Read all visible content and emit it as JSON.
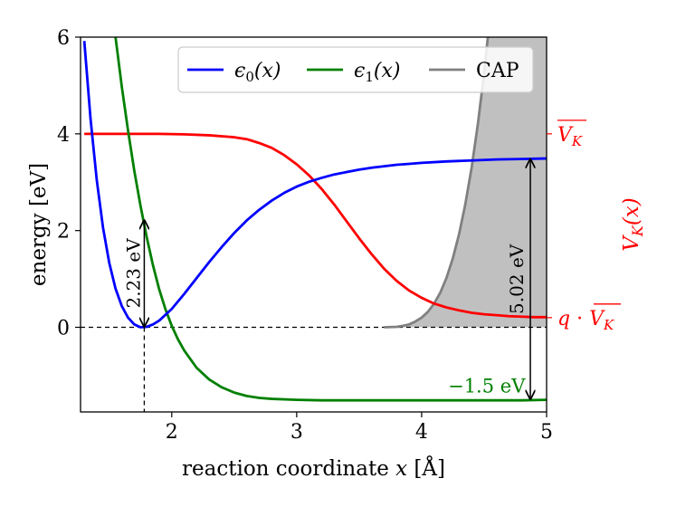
{
  "chart_data": {
    "type": "line",
    "xlabel": "reaction coordinate x [Å]",
    "ylabel": "energy [eV]",
    "ylabel_right": "V_K(x)",
    "xlim": [
      1.27,
      5.0
    ],
    "ylim": [
      -1.75,
      6.0
    ],
    "xticks": [
      "2",
      "3",
      "4",
      "5"
    ],
    "yticks": [
      "0",
      "2",
      "4",
      "6"
    ],
    "right_ticks": [
      {
        "y": 4.0,
        "label": "V̄_K"
      },
      {
        "y": 0.2,
        "label": "q · V̄_K"
      }
    ],
    "legend": {
      "placement": "top-right",
      "entries": [
        "ϵ0(x)",
        "ϵ1(x)",
        "CAP"
      ]
    },
    "series": [
      {
        "name": "ϵ0(x)",
        "color": "#0000ff",
        "x": [
          1.3,
          1.35,
          1.4,
          1.45,
          1.5,
          1.55,
          1.6,
          1.65,
          1.7,
          1.75,
          1.8,
          1.85,
          1.9,
          1.95,
          2.0,
          2.1,
          2.2,
          2.3,
          2.4,
          2.5,
          2.6,
          2.7,
          2.8,
          2.9,
          3.0,
          3.1,
          3.2,
          3.3,
          3.4,
          3.5,
          3.6,
          3.7,
          3.8,
          3.9,
          4.0,
          4.2,
          4.4,
          4.6,
          4.8,
          5.0
        ],
        "y": [
          5.92,
          4.31,
          3.04,
          2.06,
          1.33,
          0.8,
          0.44,
          0.2,
          0.06,
          0.0,
          0.01,
          0.06,
          0.14,
          0.26,
          0.38,
          0.69,
          1.02,
          1.35,
          1.66,
          1.95,
          2.21,
          2.43,
          2.62,
          2.78,
          2.91,
          3.01,
          3.09,
          3.16,
          3.21,
          3.26,
          3.3,
          3.33,
          3.36,
          3.38,
          3.4,
          3.43,
          3.45,
          3.47,
          3.48,
          3.49
        ]
      },
      {
        "name": "ϵ1(x)",
        "color": "#008000",
        "x": [
          1.3,
          1.35,
          1.4,
          1.45,
          1.5,
          1.55,
          1.6,
          1.65,
          1.7,
          1.75,
          1.8,
          1.85,
          1.9,
          1.95,
          2.0,
          2.05,
          2.1,
          2.2,
          2.3,
          2.4,
          2.5,
          2.6,
          2.7,
          2.8,
          3.0,
          3.2,
          3.4,
          3.6,
          3.8,
          4.0,
          4.2,
          4.4,
          4.6,
          4.8,
          5.0
        ],
        "y": [
          10.9,
          9.9,
          9.0,
          8.0,
          7.0,
          6.0,
          4.98,
          4.07,
          3.24,
          2.51,
          1.86,
          1.28,
          0.78,
          0.37,
          0.03,
          -0.25,
          -0.48,
          -0.84,
          -1.08,
          -1.24,
          -1.35,
          -1.42,
          -1.46,
          -1.48,
          -1.5,
          -1.51,
          -1.51,
          -1.51,
          -1.51,
          -1.51,
          -1.51,
          -1.51,
          -1.51,
          -1.51,
          -1.5
        ]
      },
      {
        "name": "V_K(x)",
        "color": "#ff0000",
        "x": [
          1.3,
          1.5,
          1.7,
          1.9,
          2.1,
          2.3,
          2.5,
          2.6,
          2.7,
          2.8,
          2.9,
          3.0,
          3.1,
          3.2,
          3.3,
          3.4,
          3.5,
          3.6,
          3.7,
          3.8,
          3.9,
          4.0,
          4.1,
          4.2,
          4.3,
          4.4,
          4.5,
          4.6,
          4.7,
          4.8,
          4.9,
          5.0
        ],
        "y": [
          4.0,
          4.0,
          4.0,
          4.0,
          3.99,
          3.97,
          3.93,
          3.89,
          3.81,
          3.71,
          3.56,
          3.37,
          3.14,
          2.86,
          2.54,
          2.19,
          1.84,
          1.51,
          1.21,
          0.96,
          0.76,
          0.61,
          0.49,
          0.41,
          0.35,
          0.3,
          0.27,
          0.25,
          0.23,
          0.22,
          0.21,
          0.21
        ]
      },
      {
        "name": "CAP",
        "color": "#808080",
        "fill": "#c0c0c0",
        "x": [
          3.7,
          3.8,
          3.85,
          3.9,
          3.95,
          4.0,
          4.05,
          4.1,
          4.15,
          4.2,
          4.25,
          4.3,
          4.35,
          4.4,
          4.45,
          4.5,
          4.55,
          4.6,
          4.65,
          4.7,
          4.75,
          4.8,
          4.85,
          4.9,
          4.95,
          5.0
        ],
        "y": [
          0.0,
          0.01,
          0.03,
          0.06,
          0.12,
          0.2,
          0.32,
          0.49,
          0.72,
          1.03,
          1.43,
          1.93,
          2.55,
          3.3,
          4.2,
          5.26,
          6.5,
          7.5,
          8.5,
          9.5,
          10.5,
          11.5,
          12.5,
          13.5,
          14.5,
          15.5
        ]
      }
    ],
    "annotations": [
      {
        "text": "2.23 eV",
        "x_min": 1.78,
        "y_from": 0.0,
        "y_to": 2.23,
        "orientation": "vertical"
      },
      {
        "text": "5.02 eV",
        "x_at": 4.87,
        "y_from": -1.5,
        "y_to": 3.49,
        "orientation": "vertical"
      },
      {
        "text": "−1.5 eV",
        "x_at": 4.52,
        "y_at": -1.5,
        "color": "#008000"
      }
    ]
  }
}
